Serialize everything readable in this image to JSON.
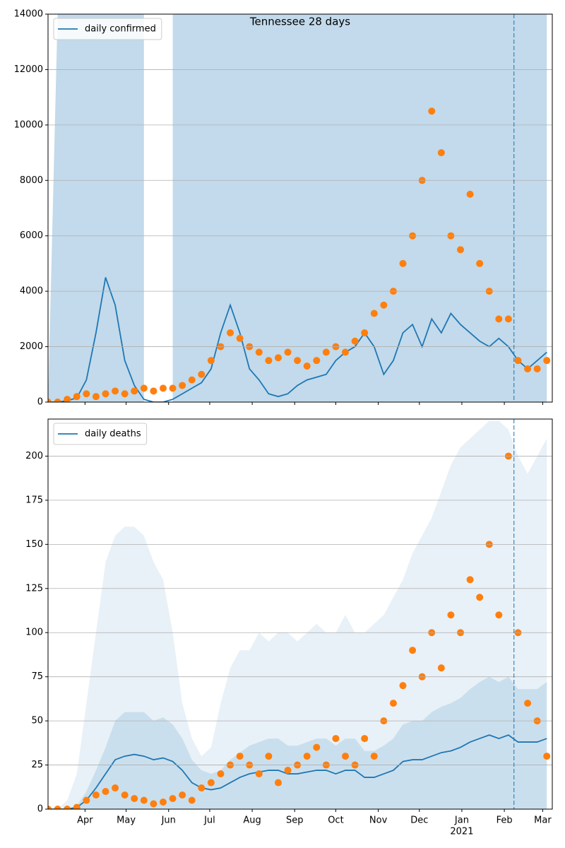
{
  "chart_data": [
    {
      "type": "line",
      "title": "Tennessee 28 days",
      "x": [
        0,
        7,
        14,
        21,
        28,
        35,
        42,
        49,
        56,
        63,
        70,
        77,
        84,
        91,
        98,
        105,
        112,
        119,
        126,
        133,
        140,
        147,
        154,
        161,
        168,
        175,
        182,
        189,
        196,
        203,
        210,
        217,
        224,
        231,
        238,
        245,
        252,
        259,
        266,
        273,
        280,
        287,
        294,
        301,
        308,
        315,
        322,
        329,
        336,
        343,
        350,
        357,
        364
      ],
      "series": [
        {
          "kind": "band",
          "color": "#1f77b4",
          "opacity": 0.27,
          "values": [
            0,
            14000,
            14000,
            14000,
            14000,
            14000,
            14000,
            14000,
            14000,
            14000,
            14000,
            null,
            null,
            14000,
            14000,
            14000,
            14000,
            14000,
            14000,
            14000,
            14000,
            14000,
            14000,
            14000,
            14000,
            14000,
            14000,
            14000,
            14000,
            14000,
            14000,
            14000,
            14000,
            14000,
            14000,
            14000,
            14000,
            14000,
            14000,
            14000,
            14000,
            14000,
            14000,
            14000,
            14000,
            14000,
            14000,
            14000,
            14000,
            14000,
            14000,
            14000,
            14000
          ]
        },
        {
          "kind": "line",
          "name": "daily confirmed",
          "color": "#1f77b4",
          "values": [
            0,
            0,
            50,
            150,
            800,
            2500,
            4500,
            3500,
            1500,
            600,
            100,
            0,
            0,
            100,
            300,
            500,
            700,
            1200,
            2500,
            3500,
            2500,
            1200,
            800,
            300,
            200,
            300,
            600,
            800,
            900,
            1000,
            1500,
            1800,
            2000,
            2500,
            2000,
            1000,
            1500,
            2500,
            2800,
            2000,
            3000,
            2500,
            3200,
            2800,
            2500,
            2200,
            2000,
            2300,
            2000,
            1500,
            1200,
            1500,
            1800
          ]
        },
        {
          "kind": "scatter",
          "color": "#ff7f0e",
          "values": [
            0,
            0,
            100,
            200,
            300,
            200,
            300,
            400,
            300,
            400,
            500,
            400,
            500,
            500,
            600,
            800,
            1000,
            1500,
            2000,
            2500,
            2300,
            2000,
            1800,
            1500,
            1600,
            1800,
            1500,
            1300,
            1500,
            1800,
            2000,
            1800,
            2200,
            2500,
            3200,
            3500,
            4000,
            5000,
            6000,
            8000,
            10500,
            9000,
            6000,
            5500,
            7500,
            5000,
            4000,
            3000,
            3000,
            1500,
            1200,
            1200,
            1500
          ]
        }
      ],
      "xlim": [
        0,
        368
      ],
      "ylim": [
        0,
        14000
      ],
      "yticks": [
        0,
        2000,
        4000,
        6000,
        8000,
        10000,
        12000,
        14000
      ],
      "vline": 340,
      "grid": true,
      "legend": "upper left"
    },
    {
      "type": "line",
      "x": [
        0,
        7,
        14,
        21,
        28,
        35,
        42,
        49,
        56,
        63,
        70,
        77,
        84,
        91,
        98,
        105,
        112,
        119,
        126,
        133,
        140,
        147,
        154,
        161,
        168,
        175,
        182,
        189,
        196,
        203,
        210,
        217,
        224,
        231,
        238,
        245,
        252,
        259,
        266,
        273,
        280,
        287,
        294,
        301,
        308,
        315,
        322,
        329,
        336,
        343,
        350,
        357,
        364
      ],
      "series": [
        {
          "kind": "band",
          "color": "#1f77b4",
          "opacity": 0.1,
          "values": [
            0,
            0,
            5,
            20,
            60,
            100,
            140,
            155,
            160,
            160,
            155,
            140,
            130,
            100,
            60,
            40,
            30,
            35,
            60,
            80,
            90,
            90,
            100,
            95,
            100,
            100,
            95,
            100,
            105,
            100,
            100,
            110,
            100,
            100,
            105,
            110,
            120,
            130,
            145,
            155,
            165,
            180,
            195,
            205,
            210,
            215,
            220,
            220,
            215,
            200,
            190,
            200,
            210
          ]
        },
        {
          "kind": "band",
          "color": "#1f77b4",
          "opacity": 0.15,
          "values": [
            0,
            0,
            0,
            2,
            10,
            22,
            35,
            50,
            55,
            55,
            55,
            50,
            52,
            48,
            40,
            28,
            22,
            20,
            22,
            28,
            32,
            36,
            38,
            40,
            40,
            36,
            36,
            38,
            40,
            40,
            36,
            40,
            40,
            33,
            33,
            36,
            40,
            48,
            50,
            50,
            55,
            58,
            60,
            63,
            68,
            72,
            75,
            72,
            75,
            68,
            68,
            68,
            72
          ]
        },
        {
          "kind": "line",
          "name": "daily deaths",
          "color": "#1f77b4",
          "values": [
            0,
            0,
            0,
            1,
            5,
            12,
            20,
            28,
            30,
            31,
            30,
            28,
            29,
            27,
            22,
            15,
            12,
            11,
            12,
            15,
            18,
            20,
            21,
            22,
            22,
            20,
            20,
            21,
            22,
            22,
            20,
            22,
            22,
            18,
            18,
            20,
            22,
            27,
            28,
            28,
            30,
            32,
            33,
            35,
            38,
            40,
            42,
            40,
            42,
            38,
            38,
            38,
            40
          ]
        },
        {
          "kind": "scatter",
          "color": "#ff7f0e",
          "values": [
            0,
            0,
            0,
            1,
            5,
            8,
            10,
            12,
            8,
            6,
            5,
            3,
            4,
            6,
            8,
            5,
            12,
            15,
            20,
            25,
            30,
            25,
            20,
            30,
            15,
            22,
            25,
            30,
            35,
            25,
            40,
            30,
            25,
            40,
            30,
            50,
            60,
            70,
            90,
            75,
            100,
            80,
            110,
            100,
            130,
            120,
            150,
            110,
            200,
            100,
            60,
            50,
            30
          ]
        }
      ],
      "xlim": [
        0,
        368
      ],
      "ylim": [
        0,
        221
      ],
      "yticks": [
        0,
        25,
        50,
        75,
        100,
        125,
        150,
        175,
        200
      ],
      "xticks": [
        {
          "value": 27,
          "label": "Apr"
        },
        {
          "value": 57,
          "label": "May"
        },
        {
          "value": 88,
          "label": "Jun"
        },
        {
          "value": 118,
          "label": "Jul"
        },
        {
          "value": 149,
          "label": "Aug"
        },
        {
          "value": 180,
          "label": "Sep"
        },
        {
          "value": 210,
          "label": "Oct"
        },
        {
          "value": 241,
          "label": "Nov"
        },
        {
          "value": 271,
          "label": "Dec"
        },
        {
          "value": 302,
          "label": "Jan"
        },
        {
          "value": 333,
          "label": "Feb"
        },
        {
          "value": 361,
          "label": "Mar"
        }
      ],
      "xtick_sublabels": [
        {
          "value": 302,
          "label": "2021"
        }
      ],
      "vline": 340,
      "grid": true,
      "legend": "upper left"
    }
  ]
}
